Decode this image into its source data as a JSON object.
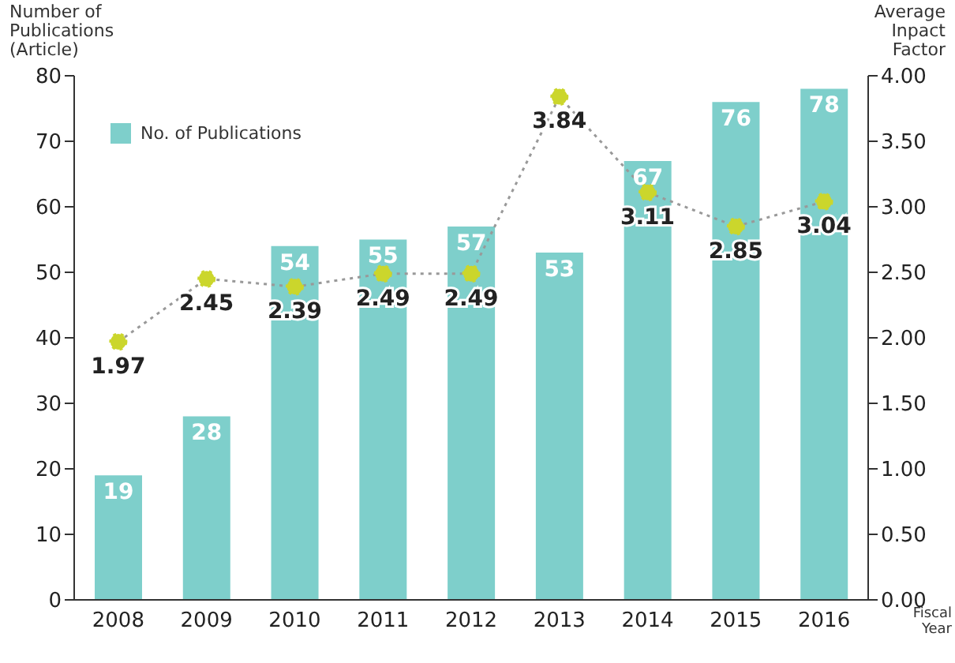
{
  "chart_data": {
    "type": "bar",
    "categories": [
      "2008",
      "2009",
      "2010",
      "2011",
      "2012",
      "2013",
      "2014",
      "2015",
      "2016"
    ],
    "series": [
      {
        "name": "No. of Publications",
        "type": "bar",
        "color": "#7ecfcb",
        "values": [
          19,
          28,
          54,
          55,
          57,
          53,
          67,
          76,
          78
        ]
      },
      {
        "type": "line",
        "axis": "y2",
        "color": "#cbd62c",
        "marker": "circle",
        "line_style": "dotted",
        "values": [
          1.97,
          2.45,
          2.39,
          2.49,
          2.49,
          3.84,
          3.11,
          2.85,
          3.04
        ]
      }
    ],
    "ylabel": "Number of Publications (Article)",
    "y2label": "Average Inpact Factor",
    "xlabel": "Fiscal Year",
    "ylim": [
      0,
      80
    ],
    "yticks": [
      0,
      10,
      20,
      30,
      40,
      50,
      60,
      70,
      80
    ],
    "y2lim": [
      0,
      4
    ],
    "y2ticks": [
      {
        "value": 0,
        "label": "0.00"
      },
      {
        "value": 0.5,
        "label": "0.50"
      },
      {
        "value": 1,
        "label": "1.00"
      },
      {
        "value": 1.5,
        "label": "1.50"
      },
      {
        "value": 2,
        "label": "2.00"
      },
      {
        "value": 2.5,
        "label": "2.50"
      },
      {
        "value": 3,
        "label": "3.00"
      },
      {
        "value": 3.5,
        "label": "3.50"
      },
      {
        "value": 4,
        "label": "4.00"
      }
    ],
    "data_labels": true,
    "legend": "top left",
    "grid": false
  }
}
